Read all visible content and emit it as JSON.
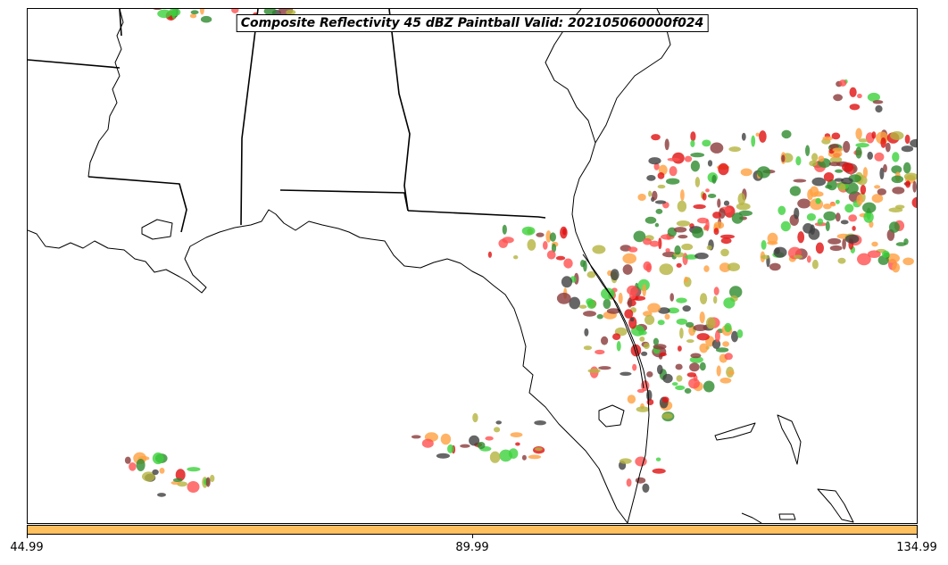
{
  "title": "Composite Reflectivity 45 dBZ Paintball Valid: 202105060000f024",
  "colorbar": {
    "color": "#ffc060",
    "ticks": [
      "44.99",
      "89.99",
      "134.99"
    ]
  },
  "paintball_colors": [
    "#e01010",
    "#ff5050",
    "#ffa040",
    "#b4b440",
    "#3cd23c",
    "#2e8b2e",
    "#8b3a3a",
    "#404040"
  ]
}
